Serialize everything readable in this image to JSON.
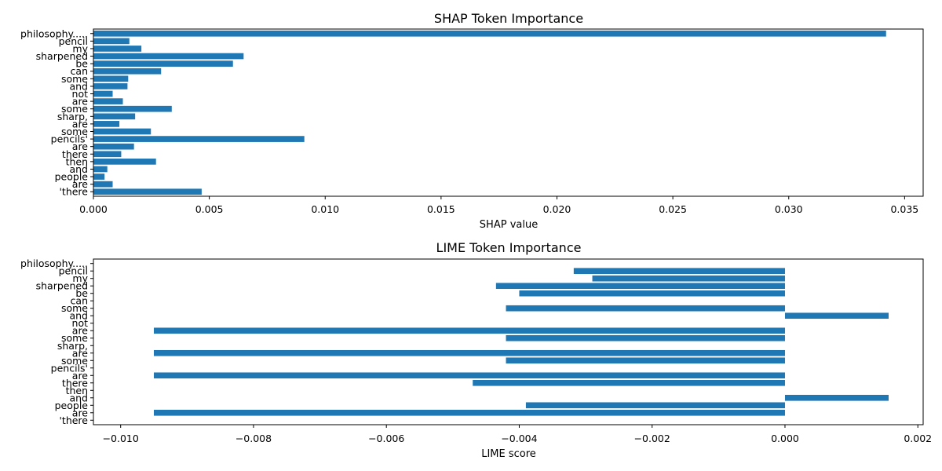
{
  "colors": {
    "bar": "#1f77b4",
    "axis": "#000000",
    "background": "#ffffff"
  },
  "chart_data": [
    {
      "type": "bar",
      "orientation": "horizontal",
      "title": "SHAP Token Importance",
      "xlabel": "SHAP value",
      "ylabel": "",
      "xlim": [
        0,
        0.0358
      ],
      "xticks": [
        0.0,
        0.005,
        0.01,
        0.015,
        0.02,
        0.025,
        0.03,
        0.035
      ],
      "xtick_labels": [
        "0.000",
        "0.005",
        "0.010",
        "0.015",
        "0.020",
        "0.025",
        "0.030",
        "0.035"
      ],
      "grid": false,
      "categories": [
        "philosophy.....",
        "pencil",
        "my",
        "sharpened",
        "be",
        "can",
        "some",
        "and",
        "not",
        "are",
        "some",
        "sharp,",
        "are",
        "some",
        "pencils'",
        "are",
        "there",
        "then",
        "and",
        "people",
        "are",
        "'there"
      ],
      "values": [
        0.0342,
        0.00155,
        0.00207,
        0.00648,
        0.00602,
        0.00292,
        0.0015,
        0.00147,
        0.00083,
        0.00127,
        0.00338,
        0.0018,
        0.00112,
        0.00248,
        0.0091,
        0.00175,
        0.0012,
        0.0027,
        0.0006,
        0.00048,
        0.00083,
        0.00467
      ]
    },
    {
      "type": "bar",
      "orientation": "horizontal",
      "title": "LIME Token Importance",
      "xlabel": "LIME score",
      "ylabel": "",
      "xlim": [
        -0.01041,
        0.00208
      ],
      "xticks": [
        -0.01,
        -0.008,
        -0.006,
        -0.004,
        -0.002,
        0.0,
        0.002
      ],
      "xtick_labels": [
        "−0.010",
        "−0.008",
        "−0.006",
        "−0.004",
        "−0.002",
        "0.000",
        "0.002"
      ],
      "grid": false,
      "categories": [
        "philosophy.....",
        "pencil",
        "my",
        "sharpened",
        "be",
        "can",
        "some",
        "and",
        "not",
        "are",
        "some",
        "sharp,",
        "are",
        "some",
        "pencils'",
        "are",
        "there",
        "then",
        "and",
        "people",
        "are",
        "'there"
      ],
      "values": [
        0,
        -0.00318,
        -0.0029,
        -0.00435,
        -0.004,
        0,
        -0.0042,
        0.00156,
        0,
        -0.0095,
        -0.0042,
        0,
        -0.0095,
        -0.0042,
        0,
        -0.0095,
        -0.0047,
        0,
        0.00156,
        -0.0039,
        -0.0095,
        0
      ]
    }
  ]
}
